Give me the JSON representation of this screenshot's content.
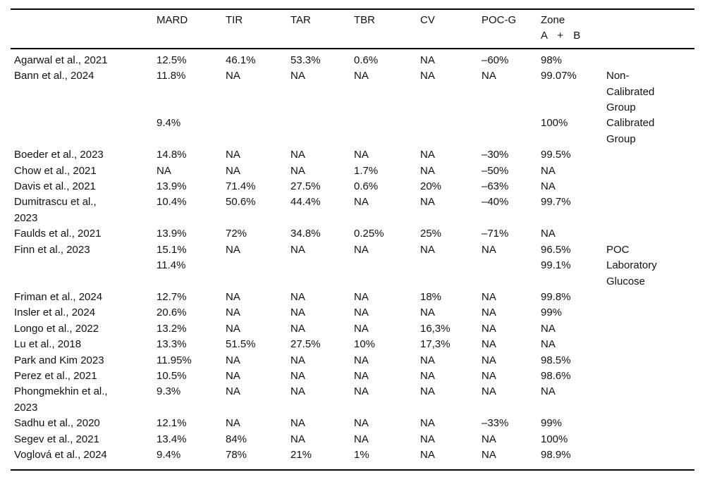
{
  "table": {
    "headers": [
      "",
      "MARD",
      "TIR",
      "TAR",
      "TBR",
      "CV",
      "POC-G",
      "Zone\nA + B",
      ""
    ],
    "rows": [
      [
        "Agarwal et al., 2021",
        "12.5%",
        "46.1%",
        "53.3%",
        "0.6%",
        "NA",
        "–60%",
        "98%",
        ""
      ],
      [
        "Bann et al., 2024",
        "11.8%",
        "NA",
        "NA",
        "NA",
        "NA",
        "NA",
        "99.07%",
        "Non-\nCalibrated\nGroup"
      ],
      [
        "",
        "9.4%",
        "",
        "",
        "",
        "",
        "",
        "100%",
        "Calibrated\nGroup"
      ],
      [
        "Boeder et al., 2023",
        "14.8%",
        "NA",
        "NA",
        "NA",
        "NA",
        "–30%",
        "99.5%",
        ""
      ],
      [
        "Chow et al., 2021",
        "NA",
        "NA",
        "NA",
        "1.7%",
        "NA",
        "–50%",
        "NA",
        ""
      ],
      [
        "Davis et al., 2021",
        "13.9%",
        "71.4%",
        "27.5%",
        "0.6%",
        "20%",
        "–63%",
        "NA",
        ""
      ],
      [
        "Dumitrascu et al.,\n2023",
        "10.4%",
        "50.6%",
        "44.4%",
        "NA",
        "NA",
        "–40%",
        "99.7%",
        ""
      ],
      [
        "Faulds et al., 2021",
        "13.9%",
        "72%",
        "34.8%",
        "0.25%",
        "25%",
        "–71%",
        "NA",
        ""
      ],
      [
        "Finn et al., 2023",
        "15.1%",
        "NA",
        "NA",
        "NA",
        "NA",
        "NA",
        "96.5%",
        "POC"
      ],
      [
        "",
        "11.4%",
        "",
        "",
        "",
        "",
        "",
        "99.1%",
        "Laboratory\nGlucose"
      ],
      [
        "Friman et al., 2024",
        "12.7%",
        "NA",
        "NA",
        "NA",
        "18%",
        "NA",
        "99.8%",
        ""
      ],
      [
        "Insler et al., 2024",
        "20.6%",
        "NA",
        "NA",
        "NA",
        "NA",
        "NA",
        "99%",
        ""
      ],
      [
        "Longo et al., 2022",
        "13.2%",
        "NA",
        "NA",
        "NA",
        "16,3%",
        "NA",
        "NA",
        ""
      ],
      [
        "Lu et al., 2018",
        "13.3%",
        "51.5%",
        "27.5%",
        "10%",
        "17,3%",
        "NA",
        "NA",
        ""
      ],
      [
        "Park and Kim 2023",
        "11.95%",
        "NA",
        "NA",
        "NA",
        "NA",
        "NA",
        "98.5%",
        ""
      ],
      [
        "Perez et al., 2021",
        "10.5%",
        "NA",
        "NA",
        "NA",
        "NA",
        "NA",
        "98.6%",
        ""
      ],
      [
        "Phongmekhin et al.,\n2023",
        "9.3%",
        "NA",
        "NA",
        "NA",
        "NA",
        "NA",
        "NA",
        ""
      ],
      [
        "Sadhu et al., 2020",
        "12.1%",
        "NA",
        "NA",
        "NA",
        "NA",
        "–33%",
        "99%",
        ""
      ],
      [
        "Segev et al., 2021",
        "13.4%",
        "84%",
        "NA",
        "NA",
        "NA",
        "NA",
        "100%",
        ""
      ],
      [
        "Voglová et al., 2024",
        "9.4%",
        "78%",
        "21%",
        "1%",
        "NA",
        "NA",
        "98.9%",
        ""
      ]
    ]
  }
}
